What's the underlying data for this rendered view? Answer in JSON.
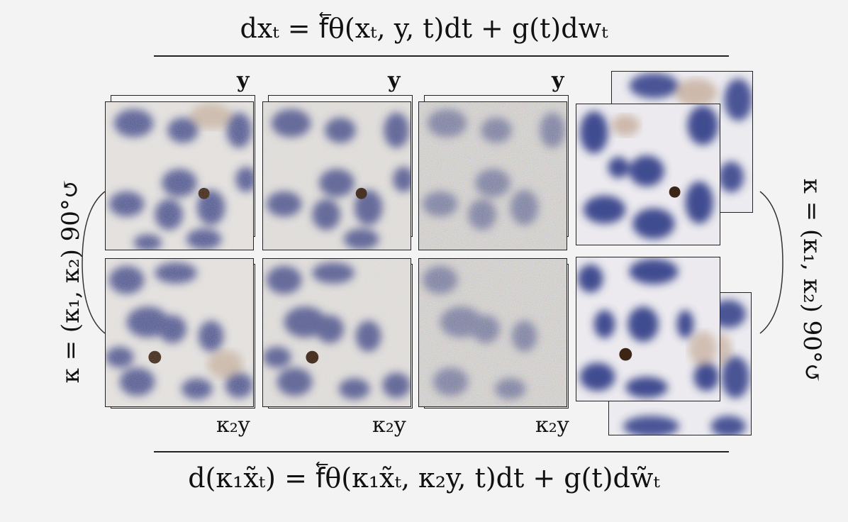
{
  "equations": {
    "top": "dxₜ = f⃖θ(xₜ, y, t)dt + g(t)dwₜ",
    "bottom": "d(κ₁x̃ₜ) = f⃖θ(κ₁x̃ₜ, κ₂y, t)dt + g(t)dw̃ₜ"
  },
  "labels": {
    "y": "y",
    "k2y": "κ₂y"
  },
  "side": {
    "left": "κ = (κ₁, κ₂)   90°↺",
    "right": "κ = (κ₁, κ₂)   90°↺"
  },
  "colors": {
    "background": "#f3f3f3",
    "nucleus": "#3c4486",
    "tissue": "#e6e2dd",
    "stain": "#8a5a2c"
  }
}
